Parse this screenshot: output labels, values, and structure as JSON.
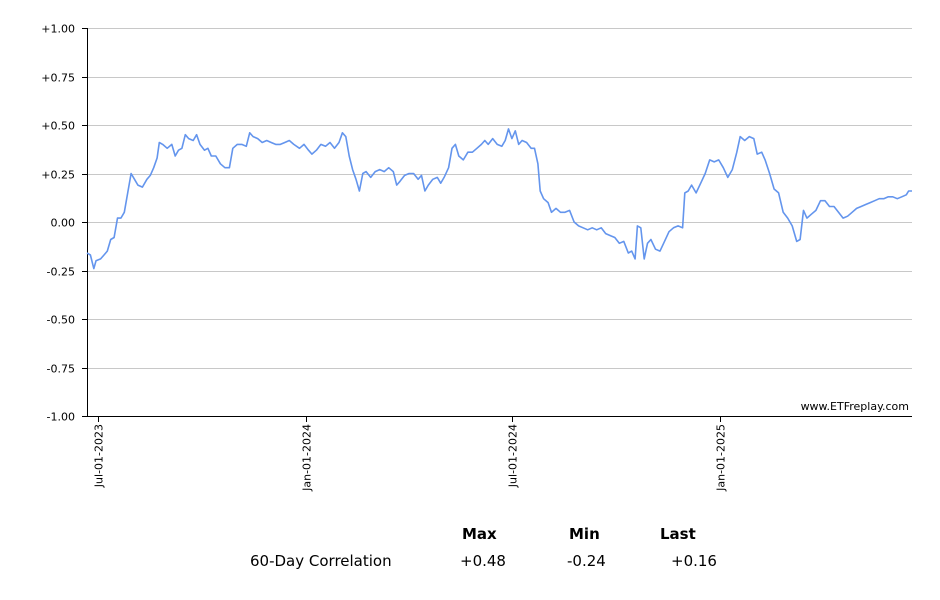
{
  "chart_data": {
    "type": "line",
    "title": "",
    "xlabel": "",
    "ylabel": "",
    "ylim": [
      -1.0,
      1.0
    ],
    "y_ticks": [
      "+1.00",
      "+0.75",
      "+0.50",
      "+0.25",
      "0.00",
      "-0.25",
      "-0.50",
      "-0.75",
      "-1.00"
    ],
    "y_tick_values": [
      1.0,
      0.75,
      0.5,
      0.25,
      0.0,
      -0.25,
      -0.5,
      -0.75,
      -1.0
    ],
    "x_ticks": [
      {
        "label": "Jul-01-2023",
        "date": "2023-07-01"
      },
      {
        "label": "Jan-01-2024",
        "date": "2024-01-01"
      },
      {
        "label": "Jul-01-2024",
        "date": "2024-07-01"
      },
      {
        "label": "Jan-01-2025",
        "date": "2025-01-01"
      }
    ],
    "x_range": [
      "2023-06-21",
      "2025-06-20"
    ],
    "grid": true,
    "color": "#6495ED",
    "series": [
      {
        "name": "60-Day Correlation",
        "points": [
          [
            "2023-06-21",
            -0.16
          ],
          [
            "2023-06-24",
            -0.17
          ],
          [
            "2023-06-27",
            -0.24
          ],
          [
            "2023-06-29",
            -0.2
          ],
          [
            "2023-07-03",
            -0.19
          ],
          [
            "2023-07-06",
            -0.17
          ],
          [
            "2023-07-09",
            -0.15
          ],
          [
            "2023-07-12",
            -0.09
          ],
          [
            "2023-07-15",
            -0.08
          ],
          [
            "2023-07-18",
            0.02
          ],
          [
            "2023-07-21",
            0.02
          ],
          [
            "2023-07-24",
            0.05
          ],
          [
            "2023-07-27",
            0.15
          ],
          [
            "2023-07-30",
            0.25
          ],
          [
            "2023-08-02",
            0.22
          ],
          [
            "2023-08-05",
            0.19
          ],
          [
            "2023-08-09",
            0.18
          ],
          [
            "2023-08-13",
            0.22
          ],
          [
            "2023-08-16",
            0.24
          ],
          [
            "2023-08-19",
            0.28
          ],
          [
            "2023-08-22",
            0.33
          ],
          [
            "2023-08-24",
            0.41
          ],
          [
            "2023-08-27",
            0.4
          ],
          [
            "2023-08-31",
            0.38
          ],
          [
            "2023-09-04",
            0.4
          ],
          [
            "2023-09-07",
            0.34
          ],
          [
            "2023-09-10",
            0.37
          ],
          [
            "2023-09-13",
            0.38
          ],
          [
            "2023-09-16",
            0.45
          ],
          [
            "2023-09-19",
            0.43
          ],
          [
            "2023-09-23",
            0.42
          ],
          [
            "2023-09-26",
            0.45
          ],
          [
            "2023-09-29",
            0.4
          ],
          [
            "2023-10-03",
            0.37
          ],
          [
            "2023-10-06",
            0.38
          ],
          [
            "2023-10-09",
            0.34
          ],
          [
            "2023-10-13",
            0.34
          ],
          [
            "2023-10-17",
            0.3
          ],
          [
            "2023-10-21",
            0.28
          ],
          [
            "2023-10-25",
            0.28
          ],
          [
            "2023-10-28",
            0.38
          ],
          [
            "2023-11-01",
            0.4
          ],
          [
            "2023-11-05",
            0.4
          ],
          [
            "2023-11-09",
            0.39
          ],
          [
            "2023-11-12",
            0.46
          ],
          [
            "2023-11-15",
            0.44
          ],
          [
            "2023-11-19",
            0.43
          ],
          [
            "2023-11-23",
            0.41
          ],
          [
            "2023-11-27",
            0.42
          ],
          [
            "2023-12-01",
            0.41
          ],
          [
            "2023-12-05",
            0.4
          ],
          [
            "2023-12-09",
            0.4
          ],
          [
            "2023-12-13",
            0.41
          ],
          [
            "2023-12-17",
            0.42
          ],
          [
            "2023-12-21",
            0.4
          ],
          [
            "2023-12-26",
            0.38
          ],
          [
            "2023-12-30",
            0.4
          ],
          [
            "2024-01-03",
            0.37
          ],
          [
            "2024-01-06",
            0.35
          ],
          [
            "2024-01-10",
            0.37
          ],
          [
            "2024-01-14",
            0.4
          ],
          [
            "2024-01-18",
            0.39
          ],
          [
            "2024-01-22",
            0.41
          ],
          [
            "2024-01-26",
            0.38
          ],
          [
            "2024-01-30",
            0.41
          ],
          [
            "2024-02-02",
            0.46
          ],
          [
            "2024-02-05",
            0.44
          ],
          [
            "2024-02-08",
            0.34
          ],
          [
            "2024-02-11",
            0.27
          ],
          [
            "2024-02-14",
            0.22
          ],
          [
            "2024-02-17",
            0.16
          ],
          [
            "2024-02-20",
            0.25
          ],
          [
            "2024-02-23",
            0.26
          ],
          [
            "2024-02-27",
            0.23
          ],
          [
            "2024-03-02",
            0.26
          ],
          [
            "2024-03-06",
            0.27
          ],
          [
            "2024-03-10",
            0.26
          ],
          [
            "2024-03-14",
            0.28
          ],
          [
            "2024-03-18",
            0.26
          ],
          [
            "2024-03-21",
            0.19
          ],
          [
            "2024-03-24",
            0.21
          ],
          [
            "2024-03-28",
            0.24
          ],
          [
            "2024-04-01",
            0.25
          ],
          [
            "2024-04-05",
            0.25
          ],
          [
            "2024-04-09",
            0.22
          ],
          [
            "2024-04-12",
            0.24
          ],
          [
            "2024-04-15",
            0.16
          ],
          [
            "2024-04-18",
            0.19
          ],
          [
            "2024-04-22",
            0.22
          ],
          [
            "2024-04-26",
            0.23
          ],
          [
            "2024-04-29",
            0.2
          ],
          [
            "2024-05-02",
            0.23
          ],
          [
            "2024-05-06",
            0.28
          ],
          [
            "2024-05-09",
            0.38
          ],
          [
            "2024-05-12",
            0.4
          ],
          [
            "2024-05-15",
            0.34
          ],
          [
            "2024-05-19",
            0.32
          ],
          [
            "2024-05-23",
            0.36
          ],
          [
            "2024-05-27",
            0.36
          ],
          [
            "2024-05-31",
            0.38
          ],
          [
            "2024-06-04",
            0.4
          ],
          [
            "2024-06-07",
            0.42
          ],
          [
            "2024-06-10",
            0.4
          ],
          [
            "2024-06-14",
            0.43
          ],
          [
            "2024-06-18",
            0.4
          ],
          [
            "2024-06-22",
            0.39
          ],
          [
            "2024-06-25",
            0.42
          ],
          [
            "2024-06-28",
            0.48
          ],
          [
            "2024-07-01",
            0.43
          ],
          [
            "2024-07-04",
            0.47
          ],
          [
            "2024-07-07",
            0.4
          ],
          [
            "2024-07-10",
            0.42
          ],
          [
            "2024-07-14",
            0.41
          ],
          [
            "2024-07-18",
            0.38
          ],
          [
            "2024-07-21",
            0.38
          ],
          [
            "2024-07-24",
            0.3
          ],
          [
            "2024-07-26",
            0.16
          ],
          [
            "2024-07-29",
            0.12
          ],
          [
            "2024-08-02",
            0.1
          ],
          [
            "2024-08-05",
            0.05
          ],
          [
            "2024-08-09",
            0.07
          ],
          [
            "2024-08-13",
            0.05
          ],
          [
            "2024-08-17",
            0.05
          ],
          [
            "2024-08-21",
            0.06
          ],
          [
            "2024-08-25",
            0.0
          ],
          [
            "2024-08-29",
            -0.02
          ],
          [
            "2024-09-02",
            -0.03
          ],
          [
            "2024-09-06",
            -0.04
          ],
          [
            "2024-09-10",
            -0.03
          ],
          [
            "2024-09-14",
            -0.04
          ],
          [
            "2024-09-18",
            -0.03
          ],
          [
            "2024-09-22",
            -0.06
          ],
          [
            "2024-09-26",
            -0.07
          ],
          [
            "2024-09-30",
            -0.08
          ],
          [
            "2024-10-04",
            -0.11
          ],
          [
            "2024-10-08",
            -0.1
          ],
          [
            "2024-10-12",
            -0.16
          ],
          [
            "2024-10-15",
            -0.15
          ],
          [
            "2024-10-18",
            -0.19
          ],
          [
            "2024-10-20",
            -0.02
          ],
          [
            "2024-10-23",
            -0.03
          ],
          [
            "2024-10-26",
            -0.19
          ],
          [
            "2024-10-29",
            -0.11
          ],
          [
            "2024-11-01",
            -0.09
          ],
          [
            "2024-11-05",
            -0.14
          ],
          [
            "2024-11-09",
            -0.15
          ],
          [
            "2024-11-13",
            -0.1
          ],
          [
            "2024-11-17",
            -0.05
          ],
          [
            "2024-11-21",
            -0.03
          ],
          [
            "2024-11-25",
            -0.02
          ],
          [
            "2024-11-29",
            -0.03
          ],
          [
            "2024-12-01",
            0.15
          ],
          [
            "2024-12-04",
            0.16
          ],
          [
            "2024-12-07",
            0.19
          ],
          [
            "2024-12-11",
            0.15
          ],
          [
            "2024-12-15",
            0.2
          ],
          [
            "2024-12-19",
            0.25
          ],
          [
            "2024-12-23",
            0.32
          ],
          [
            "2024-12-27",
            0.31
          ],
          [
            "2024-12-31",
            0.32
          ],
          [
            "2025-01-04",
            0.28
          ],
          [
            "2025-01-08",
            0.23
          ],
          [
            "2025-01-12",
            0.27
          ],
          [
            "2025-01-16",
            0.36
          ],
          [
            "2025-01-19",
            0.44
          ],
          [
            "2025-01-23",
            0.42
          ],
          [
            "2025-01-27",
            0.44
          ],
          [
            "2025-01-31",
            0.43
          ],
          [
            "2025-02-03",
            0.35
          ],
          [
            "2025-02-07",
            0.36
          ],
          [
            "2025-02-10",
            0.32
          ],
          [
            "2025-02-14",
            0.25
          ],
          [
            "2025-02-18",
            0.17
          ],
          [
            "2025-02-22",
            0.15
          ],
          [
            "2025-02-26",
            0.05
          ],
          [
            "2025-03-02",
            0.02
          ],
          [
            "2025-03-06",
            -0.02
          ],
          [
            "2025-03-10",
            -0.1
          ],
          [
            "2025-03-13",
            -0.09
          ],
          [
            "2025-03-16",
            0.06
          ],
          [
            "2025-03-19",
            0.02
          ],
          [
            "2025-03-23",
            0.04
          ],
          [
            "2025-03-27",
            0.06
          ],
          [
            "2025-03-31",
            0.11
          ],
          [
            "2025-04-04",
            0.11
          ],
          [
            "2025-04-08",
            0.08
          ],
          [
            "2025-04-12",
            0.08
          ],
          [
            "2025-04-16",
            0.05
          ],
          [
            "2025-04-20",
            0.02
          ],
          [
            "2025-04-24",
            0.03
          ],
          [
            "2025-04-28",
            0.05
          ],
          [
            "2025-05-02",
            0.07
          ],
          [
            "2025-05-06",
            0.08
          ],
          [
            "2025-05-10",
            0.09
          ],
          [
            "2025-05-14",
            0.1
          ],
          [
            "2025-05-18",
            0.11
          ],
          [
            "2025-05-22",
            0.12
          ],
          [
            "2025-05-26",
            0.12
          ],
          [
            "2025-05-30",
            0.13
          ],
          [
            "2025-06-03",
            0.13
          ],
          [
            "2025-06-07",
            0.12
          ],
          [
            "2025-06-11",
            0.13
          ],
          [
            "2025-06-15",
            0.14
          ],
          [
            "2025-06-17",
            0.16
          ],
          [
            "2025-06-20",
            0.16
          ]
        ]
      }
    ],
    "annotations": [
      "www.ETFreplay.com"
    ]
  },
  "stats": {
    "row_label": "60-Day Correlation",
    "headers": {
      "max": "Max",
      "min": "Min",
      "last": "Last"
    },
    "values": {
      "max": "+0.48",
      "min": "-0.24",
      "last": "+0.16"
    }
  }
}
